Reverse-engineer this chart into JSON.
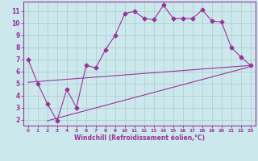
{
  "xlabel": "Windchill (Refroidissement éolien,°C)",
  "xlim": [
    -0.5,
    23.5
  ],
  "ylim": [
    1.5,
    11.8
  ],
  "xticks": [
    0,
    1,
    2,
    3,
    4,
    5,
    6,
    7,
    8,
    9,
    10,
    11,
    12,
    13,
    14,
    15,
    16,
    17,
    18,
    19,
    20,
    21,
    22,
    23
  ],
  "yticks": [
    2,
    3,
    4,
    5,
    6,
    7,
    8,
    9,
    10,
    11
  ],
  "background_color": "#cce8ec",
  "grid_color": "#aacccc",
  "line_color": "#993399",
  "curve1_x": [
    0,
    1,
    2,
    3,
    4,
    5,
    6,
    7,
    8,
    9,
    10,
    11,
    12,
    13,
    14,
    15,
    16,
    17,
    18,
    19,
    20,
    21,
    22,
    23
  ],
  "curve1_y": [
    7.0,
    5.0,
    3.3,
    1.9,
    4.5,
    3.0,
    6.5,
    6.3,
    7.8,
    9.0,
    10.8,
    11.0,
    10.4,
    10.3,
    11.5,
    10.4,
    10.4,
    10.4,
    11.1,
    10.2,
    10.1,
    8.0,
    7.2,
    6.5
  ],
  "curve2_x": [
    0,
    23
  ],
  "curve2_y": [
    5.1,
    6.5
  ],
  "curve3_x": [
    2,
    23
  ],
  "curve3_y": [
    1.9,
    6.4
  ]
}
